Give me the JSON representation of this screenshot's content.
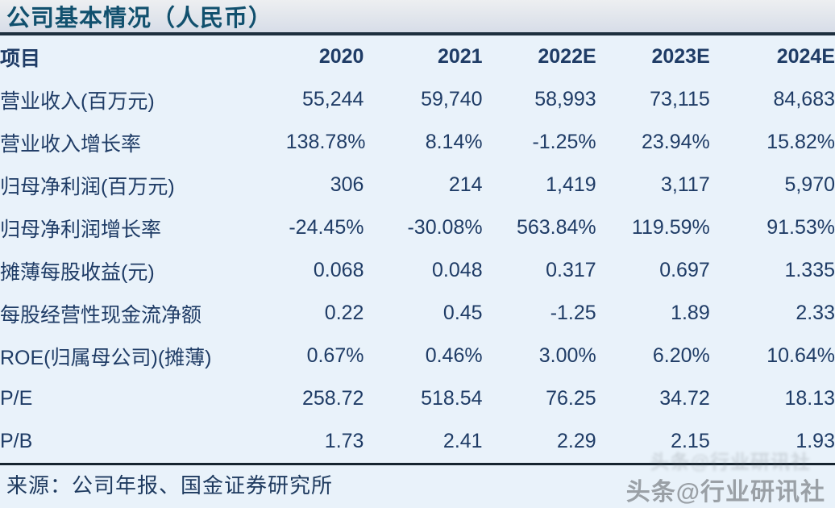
{
  "title": "公司基本情况（人民币）",
  "table": {
    "header": {
      "label": "项目",
      "years": [
        "2020",
        "2021",
        "2022E",
        "2023E",
        "2024E"
      ]
    },
    "rows": [
      {
        "label": "营业收入(百万元)",
        "values": [
          "55,244",
          "59,740",
          "58,993",
          "73,115",
          "84,683"
        ]
      },
      {
        "label": "营业收入增长率",
        "values": [
          "138.78%",
          "8.14%",
          "-1.25%",
          "23.94%",
          "15.82%"
        ]
      },
      {
        "label": "归母净利润(百万元)",
        "values": [
          "306",
          "214",
          "1,419",
          "3,117",
          "5,970"
        ]
      },
      {
        "label": "归母净利润增长率",
        "values": [
          "-24.45%",
          "-30.08%",
          "563.84%",
          "119.59%",
          "91.53%"
        ]
      },
      {
        "label": "摊薄每股收益(元)",
        "values": [
          "0.068",
          "0.048",
          "0.317",
          "0.697",
          "1.335"
        ]
      },
      {
        "label": "每股经营性现金流净额",
        "values": [
          "0.22",
          "0.45",
          "-1.25",
          "1.89",
          "2.33"
        ]
      },
      {
        "label": "ROE(归属母公司)(摊薄)",
        "values": [
          "0.67%",
          "0.46%",
          "3.00%",
          "6.20%",
          "10.64%"
        ]
      },
      {
        "label": "P/E",
        "values": [
          "258.72",
          "518.54",
          "76.25",
          "34.72",
          "18.13"
        ]
      },
      {
        "label": "P/B",
        "values": [
          "1.73",
          "2.41",
          "2.29",
          "2.15",
          "1.93"
        ]
      }
    ]
  },
  "source": "来源：公司年报、国金证券研究所",
  "watermark": {
    "text": "头条@行业研讯社",
    "ghost": "头条@行业研讯社"
  },
  "colors": {
    "page_background": "#e9f2fa",
    "title_text": "#11506e",
    "title_bar_top": "#edeff1",
    "title_bar_bottom": "#d7dde8",
    "rule_line": "#1d2f3e",
    "header_text": "#132f57",
    "body_text": "#1f3c66",
    "watermark_text": "#9aa0a6"
  }
}
